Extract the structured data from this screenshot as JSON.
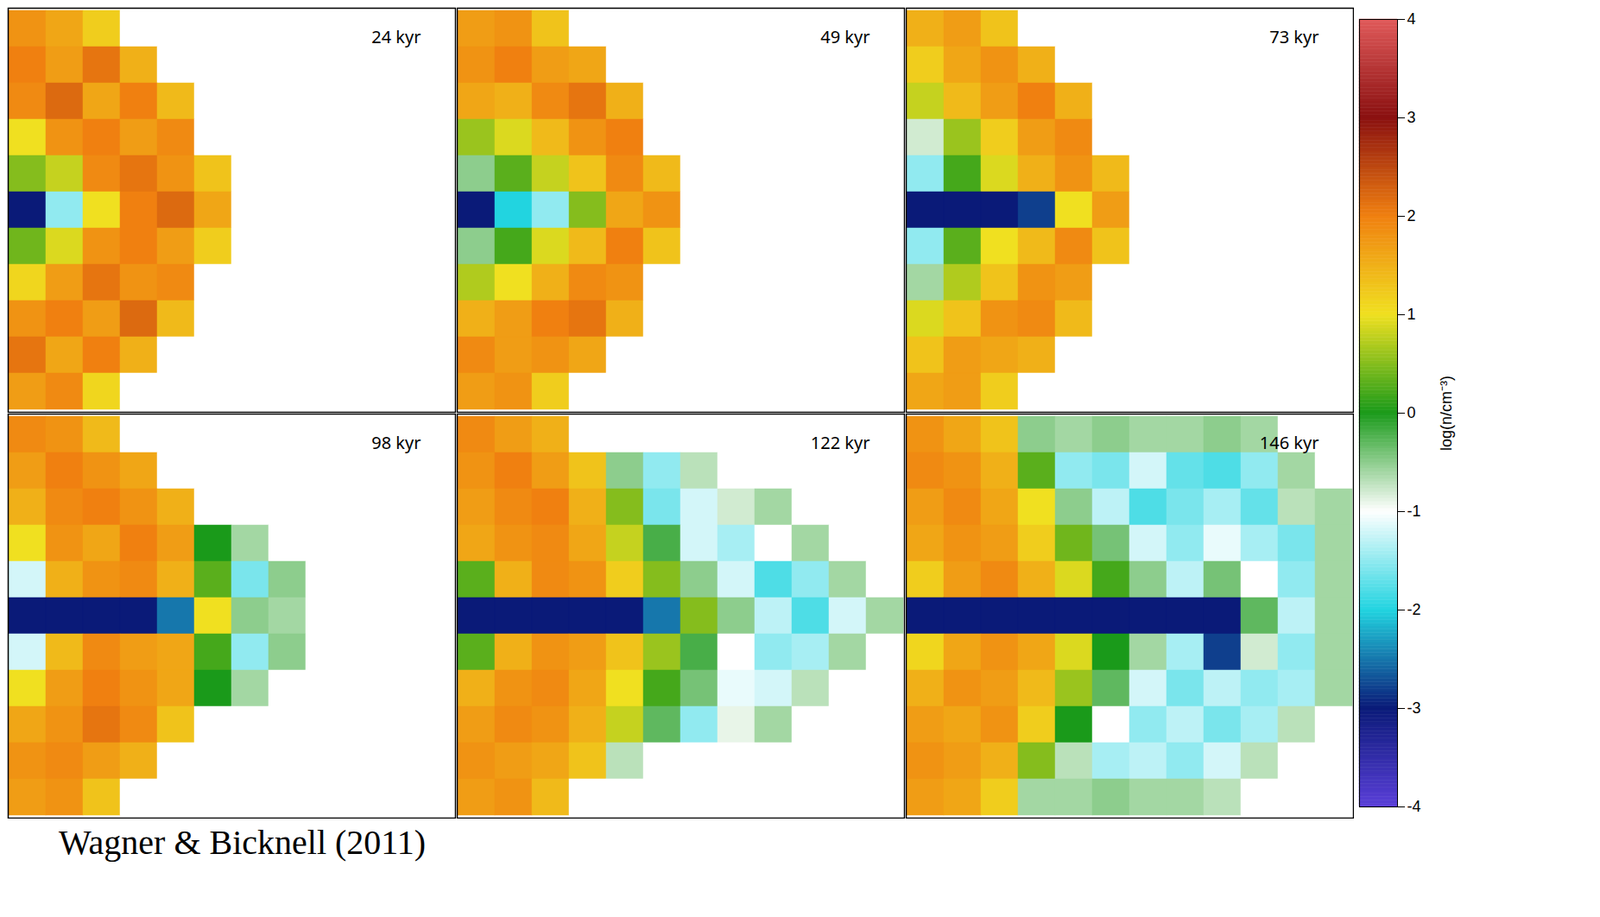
{
  "chart_data": {
    "type": "heatmap",
    "tick_labels": false,
    "caption": "Wagner & Bicknell (2011)",
    "colorbar": {
      "label": "log(n/cm⁻³)",
      "range": [
        -4,
        4
      ],
      "ticks": [
        -4,
        -3,
        -2,
        -1,
        0,
        1,
        2,
        3,
        4
      ]
    },
    "panels": [
      {
        "title": "24 kyr",
        "cells": [
          [
            1.8,
            1.6,
            1.2,
            -1,
            -1,
            -1,
            -1,
            -1,
            -1,
            -1,
            -1,
            -1
          ],
          [
            2,
            1.7,
            2.1,
            1.5,
            -1,
            -1,
            -1,
            -1,
            -1,
            -1,
            -1,
            -1
          ],
          [
            1.9,
            2.2,
            1.6,
            2,
            1.4,
            -1,
            -1,
            -1,
            -1,
            -1,
            -1,
            -1
          ],
          [
            1,
            1.8,
            2,
            1.7,
            1.9,
            -1,
            -1,
            -1,
            -1,
            -1,
            -1,
            -1
          ],
          [
            0.5,
            0.8,
            1.9,
            2.1,
            1.8,
            1.3,
            -1,
            -1,
            -1,
            -1,
            -1,
            -1
          ],
          [
            -3,
            -1.5,
            1,
            2,
            2.2,
            1.6,
            -1,
            -1,
            -1,
            -1,
            -1,
            -1
          ],
          [
            0.4,
            0.9,
            1.8,
            2,
            1.7,
            1.2,
            -1,
            -1,
            -1,
            -1,
            -1,
            -1
          ],
          [
            1.1,
            1.7,
            2.1,
            1.8,
            1.9,
            -1,
            -1,
            -1,
            -1,
            -1,
            -1,
            -1
          ],
          [
            1.8,
            2,
            1.7,
            2.2,
            1.4,
            -1,
            -1,
            -1,
            -1,
            -1,
            -1,
            -1
          ],
          [
            2.1,
            1.6,
            2,
            1.5,
            -1,
            -1,
            -1,
            -1,
            -1,
            -1,
            -1,
            -1
          ],
          [
            1.7,
            1.9,
            1.1,
            -1,
            -1,
            -1,
            -1,
            -1,
            -1,
            -1,
            -1,
            -1
          ]
        ]
      },
      {
        "title": "49 kyr",
        "cells": [
          [
            1.7,
            1.8,
            1.3,
            -1,
            -1,
            -1,
            -1,
            -1,
            -1,
            -1,
            -1,
            -1
          ],
          [
            1.8,
            2,
            1.7,
            1.6,
            -1,
            -1,
            -1,
            -1,
            -1,
            -1,
            -1,
            -1
          ],
          [
            1.6,
            1.5,
            1.9,
            2.1,
            1.5,
            -1,
            -1,
            -1,
            -1,
            -1,
            -1,
            -1
          ],
          [
            0.6,
            0.9,
            1.4,
            1.8,
            2,
            -1,
            -1,
            -1,
            -1,
            -1,
            -1,
            -1
          ],
          [
            -0.5,
            0.3,
            0.8,
            1.3,
            1.9,
            1.4,
            -1,
            -1,
            -1,
            -1,
            -1,
            -1
          ],
          [
            -3,
            -2,
            -1.5,
            0.5,
            1.6,
            1.8,
            -1,
            -1,
            -1,
            -1,
            -1,
            -1
          ],
          [
            -0.5,
            0.2,
            0.9,
            1.4,
            2,
            1.3,
            -1,
            -1,
            -1,
            -1,
            -1,
            -1
          ],
          [
            0.7,
            1,
            1.5,
            1.9,
            1.8,
            -1,
            -1,
            -1,
            -1,
            -1,
            -1,
            -1
          ],
          [
            1.5,
            1.7,
            2,
            2.1,
            1.5,
            -1,
            -1,
            -1,
            -1,
            -1,
            -1,
            -1
          ],
          [
            1.9,
            1.7,
            1.8,
            1.6,
            -1,
            -1,
            -1,
            -1,
            -1,
            -1,
            -1,
            -1
          ],
          [
            1.7,
            1.8,
            1.2,
            -1,
            -1,
            -1,
            -1,
            -1,
            -1,
            -1,
            -1,
            -1
          ]
        ]
      },
      {
        "title": "73 kyr",
        "cells": [
          [
            1.5,
            1.7,
            1.3,
            -1,
            -1,
            -1,
            -1,
            -1,
            -1,
            -1,
            -1,
            -1
          ],
          [
            1.2,
            1.6,
            1.8,
            1.5,
            -1,
            -1,
            -1,
            -1,
            -1,
            -1,
            -1,
            -1
          ],
          [
            0.8,
            1.4,
            1.7,
            2,
            1.5,
            -1,
            -1,
            -1,
            -1,
            -1,
            -1,
            -1
          ],
          [
            -0.8,
            0.6,
            1.2,
            1.7,
            1.9,
            -1,
            -1,
            -1,
            -1,
            -1,
            -1,
            -1
          ],
          [
            -1.5,
            0.2,
            0.9,
            1.5,
            1.8,
            1.4,
            -1,
            -1,
            -1,
            -1,
            -1,
            -1
          ],
          [
            -3,
            -3,
            -3,
            -2.8,
            1,
            1.7,
            -1,
            -1,
            -1,
            -1,
            -1,
            -1
          ],
          [
            -1.5,
            0.3,
            1,
            1.4,
            1.9,
            1.3,
            -1,
            -1,
            -1,
            -1,
            -1,
            -1
          ],
          [
            -0.6,
            0.7,
            1.3,
            1.8,
            1.7,
            -1,
            -1,
            -1,
            -1,
            -1,
            -1,
            -1
          ],
          [
            0.9,
            1.3,
            1.8,
            1.9,
            1.4,
            -1,
            -1,
            -1,
            -1,
            -1,
            -1,
            -1
          ],
          [
            1.3,
            1.7,
            1.6,
            1.5,
            -1,
            -1,
            -1,
            -1,
            -1,
            -1,
            -1,
            -1
          ],
          [
            1.6,
            1.7,
            1.2,
            -1,
            -1,
            -1,
            -1,
            -1,
            -1,
            -1,
            -1,
            -1
          ]
        ]
      },
      {
        "title": "98 kyr",
        "cells": [
          [
            1.9,
            1.8,
            1.4,
            -1,
            -1,
            -1,
            -1,
            -1,
            -1,
            -1,
            -1,
            -1
          ],
          [
            1.7,
            2,
            1.8,
            1.6,
            -1,
            -1,
            -1,
            -1,
            -1,
            -1,
            -1,
            -1
          ],
          [
            1.5,
            1.9,
            2,
            1.8,
            1.5,
            -1,
            -1,
            -1,
            -1,
            -1,
            -1,
            -1
          ],
          [
            1,
            1.8,
            1.6,
            2,
            1.7,
            0,
            -0.6,
            -1,
            -1,
            -1,
            -1,
            -1
          ],
          [
            -1.2,
            1.5,
            1.8,
            1.9,
            1.5,
            0.3,
            -1.6,
            -0.5,
            -1,
            -1,
            -1,
            -1
          ],
          [
            -3,
            -3,
            -3,
            -3,
            -2.5,
            1,
            -0.5,
            -0.6,
            -1,
            -1,
            -1,
            -1
          ],
          [
            -1.2,
            1.4,
            1.9,
            1.7,
            1.6,
            0.2,
            -1.5,
            -0.5,
            -1,
            -1,
            -1,
            -1
          ],
          [
            1,
            1.7,
            2,
            1.8,
            1.6,
            0,
            -0.6,
            -1,
            -1,
            -1,
            -1,
            -1
          ],
          [
            1.6,
            1.8,
            2.1,
            1.9,
            1.3,
            -1,
            -1,
            -1,
            -1,
            -1,
            -1,
            -1
          ],
          [
            1.8,
            1.9,
            1.7,
            1.5,
            -1,
            -1,
            -1,
            -1,
            -1,
            -1,
            -1,
            -1
          ],
          [
            1.7,
            1.8,
            1.3,
            -1,
            -1,
            -1,
            -1,
            -1,
            -1,
            -1,
            -1,
            -1
          ]
        ]
      },
      {
        "title": "122 kyr",
        "cells": [
          [
            1.9,
            1.7,
            1.5,
            -1,
            -1,
            -1,
            -1,
            -1,
            -1,
            -1,
            -1,
            -1
          ],
          [
            1.8,
            2,
            1.7,
            1.3,
            -0.5,
            -1.5,
            -0.7,
            -1,
            -1,
            -1,
            -1,
            -1
          ],
          [
            1.7,
            1.9,
            2,
            1.5,
            0.5,
            -1.6,
            -1.2,
            -0.8,
            -0.6,
            -1,
            -1,
            -1
          ],
          [
            1.6,
            1.8,
            1.9,
            1.6,
            0.8,
            -0.2,
            -1.2,
            -1.4,
            -1,
            -0.6,
            -1,
            -1
          ],
          [
            0.3,
            1.5,
            1.9,
            1.8,
            1.2,
            0.5,
            -0.5,
            -1.2,
            -1.8,
            -1.5,
            -0.6,
            -1
          ],
          [
            -3,
            -3,
            -3,
            -3,
            -3,
            -2.5,
            0.5,
            -0.5,
            -1.3,
            -1.8,
            -1.2,
            -0.6
          ],
          [
            0.3,
            1.5,
            1.8,
            1.7,
            1.3,
            0.6,
            -0.2,
            -1,
            -1.5,
            -1.4,
            -0.6,
            -1
          ],
          [
            1.5,
            1.8,
            1.9,
            1.6,
            1,
            0.2,
            -0.4,
            -1.1,
            -1.2,
            -0.7,
            -1,
            -1
          ],
          [
            1.7,
            1.9,
            1.8,
            1.5,
            0.8,
            -0.3,
            -1.5,
            -0.9,
            -0.6,
            -1,
            -1,
            -1
          ],
          [
            1.8,
            1.7,
            1.6,
            1.3,
            -0.7,
            -1,
            -1,
            -1,
            -1,
            -1,
            -1,
            -1
          ],
          [
            1.7,
            1.8,
            1.4,
            -1,
            -1,
            -1,
            -1,
            -1,
            -1,
            -1,
            -1,
            -1
          ]
        ]
      },
      {
        "title": "146 kyr",
        "cells": [
          [
            1.8,
            1.6,
            1.3,
            -0.5,
            -0.6,
            -0.5,
            -0.6,
            -0.6,
            -0.5,
            -0.6,
            -1,
            -1
          ],
          [
            1.9,
            1.8,
            1.5,
            0.3,
            -1.5,
            -1.6,
            -1.2,
            -1.7,
            -1.8,
            -1.5,
            -0.6,
            -1
          ],
          [
            1.7,
            1.9,
            1.6,
            1,
            -0.5,
            -1.3,
            -1.8,
            -1.6,
            -1.4,
            -1.7,
            -0.7,
            -0.6
          ],
          [
            1.6,
            1.8,
            1.7,
            1.2,
            0.4,
            -0.4,
            -1.2,
            -1.5,
            -1.1,
            -1.4,
            -1.6,
            -0.6
          ],
          [
            1.2,
            1.7,
            1.9,
            1.5,
            0.9,
            0.2,
            -0.5,
            -1.3,
            -0.4,
            -1,
            -1.5,
            -0.6
          ],
          [
            -3,
            -3,
            -3,
            -3,
            -3,
            -3,
            -3,
            -3,
            -3,
            -0.3,
            -1.3,
            -0.6
          ],
          [
            1.1,
            1.6,
            1.8,
            1.6,
            0.9,
            0,
            -0.6,
            -1.4,
            -2.8,
            -0.8,
            -1.5,
            -0.6
          ],
          [
            1.5,
            1.8,
            1.7,
            1.4,
            0.6,
            -0.3,
            -1.2,
            -1.6,
            -1.3,
            -1.5,
            -1.4,
            -0.6
          ],
          [
            1.7,
            1.6,
            1.8,
            1.2,
            0,
            -1,
            -1.5,
            -1.3,
            -1.6,
            -1.4,
            -0.7,
            -1
          ],
          [
            1.8,
            1.7,
            1.5,
            0.5,
            -0.7,
            -1.4,
            -1.3,
            -1.5,
            -1.2,
            -0.7,
            -1,
            -1
          ],
          [
            1.7,
            1.6,
            1.2,
            -0.6,
            -0.6,
            -0.5,
            -0.6,
            -0.6,
            -0.7,
            -1,
            -1,
            -1
          ]
        ]
      }
    ]
  }
}
